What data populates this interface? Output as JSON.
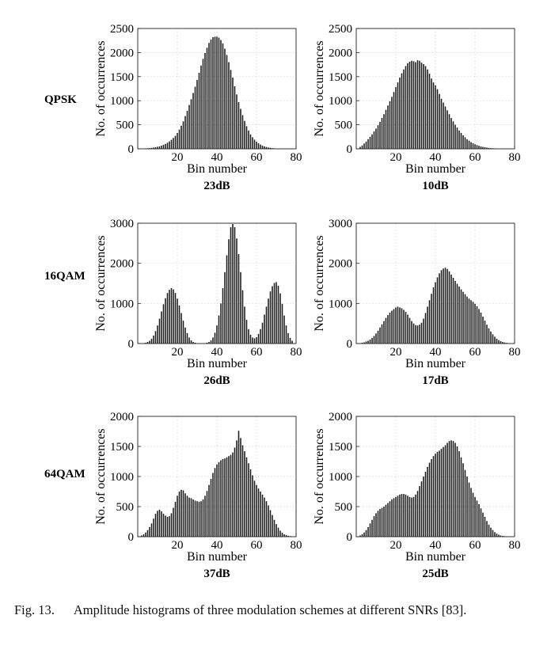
{
  "caption": {
    "label": "Fig. 13.",
    "text": "Amplitude histograms of three modulation schemes at different SNRs [83]."
  },
  "rows": [
    {
      "label": "QPSK"
    },
    {
      "label": "16QAM"
    },
    {
      "label": "64QAM"
    }
  ],
  "chart_data": [
    {
      "type": "bar",
      "modulation": "QPSK",
      "snr": "23dB",
      "xlabel": "Bin number",
      "ylabel": "No. of occurrences",
      "xlim": [
        0,
        80
      ],
      "ylim": [
        0,
        2500
      ],
      "xticks": [
        20,
        40,
        60,
        80
      ],
      "yticks": [
        0,
        500,
        1000,
        1500,
        2000,
        2500
      ],
      "grid": true,
      "bins": [
        2,
        3,
        4,
        5,
        6,
        7,
        8,
        9,
        10,
        11,
        12,
        13,
        14,
        15,
        16,
        17,
        18,
        19,
        20,
        21,
        22,
        23,
        24,
        25,
        26,
        27,
        28,
        29,
        30,
        31,
        32,
        33,
        34,
        35,
        36,
        37,
        38,
        39,
        40,
        41,
        42,
        43,
        44,
        45,
        46,
        47,
        48,
        49,
        50,
        51,
        52,
        53,
        54,
        55,
        56,
        57,
        58,
        59,
        60,
        61,
        62,
        63,
        64,
        65,
        66,
        67,
        68,
        69,
        70,
        71,
        72,
        73,
        74,
        75,
        76,
        77,
        78
      ],
      "values": [
        5,
        8,
        10,
        12,
        16,
        20,
        26,
        33,
        42,
        52,
        66,
        82,
        102,
        126,
        154,
        188,
        226,
        270,
        330,
        400,
        480,
        570,
        680,
        790,
        910,
        1030,
        1160,
        1290,
        1430,
        1580,
        1730,
        1870,
        1990,
        2100,
        2200,
        2270,
        2320,
        2330,
        2330,
        2310,
        2260,
        2190,
        2080,
        1950,
        1800,
        1640,
        1480,
        1300,
        1130,
        970,
        830,
        700,
        580,
        470,
        380,
        300,
        240,
        190,
        150,
        115,
        88,
        66,
        50,
        38,
        28,
        20,
        14,
        10,
        7,
        5,
        4,
        3,
        2,
        2,
        1,
        1,
        1
      ]
    },
    {
      "type": "bar",
      "modulation": "QPSK",
      "snr": "10dB",
      "xlabel": "Bin number",
      "ylabel": "No. of occurrences",
      "xlim": [
        0,
        80
      ],
      "ylim": [
        0,
        2500
      ],
      "xticks": [
        20,
        40,
        60,
        80
      ],
      "yticks": [
        0,
        500,
        1000,
        1500,
        2000,
        2500
      ],
      "grid": true,
      "bins": [
        2,
        3,
        4,
        5,
        6,
        7,
        8,
        9,
        10,
        11,
        12,
        13,
        14,
        15,
        16,
        17,
        18,
        19,
        20,
        21,
        22,
        23,
        24,
        25,
        26,
        27,
        28,
        29,
        30,
        31,
        32,
        33,
        34,
        35,
        36,
        37,
        38,
        39,
        40,
        41,
        42,
        43,
        44,
        45,
        46,
        47,
        48,
        49,
        50,
        51,
        52,
        53,
        54,
        55,
        56,
        57,
        58,
        59,
        60,
        61,
        62,
        63,
        64,
        65,
        66,
        67,
        68,
        69,
        70,
        71,
        72,
        73,
        74,
        75,
        76,
        77,
        78
      ],
      "values": [
        40,
        70,
        110,
        150,
        200,
        250,
        300,
        360,
        420,
        490,
        560,
        640,
        720,
        810,
        900,
        990,
        1080,
        1180,
        1280,
        1380,
        1480,
        1570,
        1650,
        1720,
        1780,
        1810,
        1830,
        1820,
        1800,
        1840,
        1830,
        1790,
        1760,
        1720,
        1650,
        1560,
        1460,
        1380,
        1320,
        1240,
        1140,
        1040,
        960,
        880,
        800,
        720,
        640,
        570,
        500,
        440,
        380,
        330,
        280,
        240,
        200,
        170,
        140,
        115,
        95,
        78,
        63,
        50,
        40,
        32,
        25,
        19,
        15,
        12,
        9,
        7,
        5,
        4,
        3,
        2,
        2,
        1,
        1
      ]
    },
    {
      "type": "bar",
      "modulation": "16QAM",
      "snr": "26dB",
      "xlabel": "Bin number",
      "ylabel": "No. of occurrences",
      "xlim": [
        0,
        80
      ],
      "ylim": [
        0,
        3000
      ],
      "xticks": [
        20,
        40,
        60,
        80
      ],
      "yticks": [
        0,
        1000,
        2000,
        3000
      ],
      "grid": true,
      "bins": [
        2,
        3,
        4,
        5,
        6,
        7,
        8,
        9,
        10,
        11,
        12,
        13,
        14,
        15,
        16,
        17,
        18,
        19,
        20,
        21,
        22,
        23,
        24,
        25,
        26,
        27,
        28,
        29,
        30,
        31,
        32,
        33,
        34,
        35,
        36,
        37,
        38,
        39,
        40,
        41,
        42,
        43,
        44,
        45,
        46,
        47,
        48,
        49,
        50,
        51,
        52,
        53,
        54,
        55,
        56,
        57,
        58,
        59,
        60,
        61,
        62,
        63,
        64,
        65,
        66,
        67,
        68,
        69,
        70,
        71,
        72,
        73,
        74,
        75,
        76,
        77,
        78
      ],
      "values": [
        5,
        10,
        20,
        40,
        70,
        120,
        200,
        310,
        450,
        620,
        800,
        980,
        1130,
        1260,
        1340,
        1380,
        1350,
        1260,
        1120,
        950,
        760,
        570,
        400,
        260,
        150,
        80,
        40,
        20,
        10,
        5,
        5,
        5,
        10,
        20,
        40,
        80,
        150,
        270,
        450,
        700,
        1000,
        1380,
        1780,
        2200,
        2600,
        2900,
        2980,
        2900,
        2620,
        2230,
        1780,
        1330,
        920,
        590,
        360,
        220,
        150,
        130,
        160,
        240,
        360,
        520,
        720,
        920,
        1120,
        1300,
        1430,
        1510,
        1530,
        1440,
        1250,
        990,
        700,
        450,
        260,
        140,
        70
      ]
    },
    {
      "type": "bar",
      "modulation": "16QAM",
      "snr": "17dB",
      "xlabel": "Bin number",
      "ylabel": "No. of occurrences",
      "xlim": [
        0,
        80
      ],
      "ylim": [
        0,
        3000
      ],
      "xticks": [
        20,
        40,
        60,
        80
      ],
      "yticks": [
        0,
        1000,
        2000,
        3000
      ],
      "grid": true,
      "bins": [
        2,
        3,
        4,
        5,
        6,
        7,
        8,
        9,
        10,
        11,
        12,
        13,
        14,
        15,
        16,
        17,
        18,
        19,
        20,
        21,
        22,
        23,
        24,
        25,
        26,
        27,
        28,
        29,
        30,
        31,
        32,
        33,
        34,
        35,
        36,
        37,
        38,
        39,
        40,
        41,
        42,
        43,
        44,
        45,
        46,
        47,
        48,
        49,
        50,
        51,
        52,
        53,
        54,
        55,
        56,
        57,
        58,
        59,
        60,
        61,
        62,
        63,
        64,
        65,
        66,
        67,
        68,
        69,
        70,
        71,
        72,
        73,
        74,
        75,
        76,
        77,
        78
      ],
      "values": [
        10,
        20,
        30,
        50,
        70,
        100,
        140,
        190,
        250,
        320,
        400,
        480,
        560,
        640,
        710,
        770,
        820,
        860,
        900,
        920,
        900,
        880,
        840,
        790,
        720,
        640,
        560,
        500,
        460,
        450,
        470,
        520,
        620,
        760,
        920,
        1080,
        1240,
        1400,
        1530,
        1650,
        1750,
        1830,
        1870,
        1890,
        1860,
        1800,
        1720,
        1640,
        1560,
        1490,
        1420,
        1350,
        1290,
        1230,
        1170,
        1120,
        1080,
        1040,
        990,
        930,
        860,
        770,
        670,
        570,
        470,
        380,
        300,
        230,
        170,
        120,
        85,
        60,
        40,
        26,
        17,
        10,
        6
      ]
    },
    {
      "type": "bar",
      "modulation": "64QAM",
      "snr": "37dB",
      "xlabel": "Bin number",
      "ylabel": "No. of occurrences",
      "xlim": [
        0,
        80
      ],
      "ylim": [
        0,
        2000
      ],
      "xticks": [
        20,
        40,
        60,
        80
      ],
      "yticks": [
        0,
        500,
        1000,
        1500,
        2000
      ],
      "grid": true,
      "bins": [
        2,
        3,
        4,
        5,
        6,
        7,
        8,
        9,
        10,
        11,
        12,
        13,
        14,
        15,
        16,
        17,
        18,
        19,
        20,
        21,
        22,
        23,
        24,
        25,
        26,
        27,
        28,
        29,
        30,
        31,
        32,
        33,
        34,
        35,
        36,
        37,
        38,
        39,
        40,
        41,
        42,
        43,
        44,
        45,
        46,
        47,
        48,
        49,
        50,
        51,
        52,
        53,
        54,
        55,
        56,
        57,
        58,
        59,
        60,
        61,
        62,
        63,
        64,
        65,
        66,
        67,
        68,
        69,
        70,
        71,
        72,
        73,
        74,
        75,
        76,
        77,
        78
      ],
      "values": [
        20,
        40,
        70,
        110,
        160,
        220,
        300,
        380,
        430,
        450,
        420,
        380,
        350,
        330,
        340,
        390,
        480,
        580,
        680,
        750,
        780,
        770,
        720,
        680,
        650,
        640,
        620,
        600,
        590,
        580,
        590,
        620,
        680,
        760,
        860,
        960,
        1060,
        1140,
        1200,
        1240,
        1270,
        1290,
        1300,
        1320,
        1340,
        1360,
        1400,
        1480,
        1600,
        1760,
        1640,
        1520,
        1420,
        1320,
        1220,
        1120,
        1020,
        930,
        860,
        800,
        750,
        700,
        650,
        590,
        520,
        440,
        360,
        280,
        210,
        150,
        100,
        65,
        40,
        25,
        15,
        10,
        6
      ]
    },
    {
      "type": "bar",
      "modulation": "64QAM",
      "snr": "25dB",
      "xlabel": "Bin number",
      "ylabel": "No. of occurrences",
      "xlim": [
        0,
        80
      ],
      "ylim": [
        0,
        2000
      ],
      "xticks": [
        20,
        40,
        60,
        80
      ],
      "yticks": [
        0,
        500,
        1000,
        1500,
        2000
      ],
      "grid": true,
      "bins": [
        2,
        3,
        4,
        5,
        6,
        7,
        8,
        9,
        10,
        11,
        12,
        13,
        14,
        15,
        16,
        17,
        18,
        19,
        20,
        21,
        22,
        23,
        24,
        25,
        26,
        27,
        28,
        29,
        30,
        31,
        32,
        33,
        34,
        35,
        36,
        37,
        38,
        39,
        40,
        41,
        42,
        43,
        44,
        45,
        46,
        47,
        48,
        49,
        50,
        51,
        52,
        53,
        54,
        55,
        56,
        57,
        58,
        59,
        60,
        61,
        62,
        63,
        64,
        65,
        66,
        67,
        68,
        69,
        70,
        71,
        72,
        73,
        74,
        75,
        76,
        77,
        78
      ],
      "values": [
        20,
        40,
        70,
        110,
        160,
        220,
        280,
        340,
        390,
        430,
        460,
        480,
        500,
        530,
        560,
        590,
        620,
        640,
        660,
        680,
        700,
        710,
        710,
        700,
        680,
        660,
        650,
        660,
        700,
        760,
        840,
        920,
        1000,
        1080,
        1160,
        1230,
        1290,
        1340,
        1380,
        1410,
        1430,
        1460,
        1490,
        1520,
        1560,
        1590,
        1600,
        1590,
        1560,
        1500,
        1420,
        1320,
        1220,
        1110,
        1000,
        900,
        810,
        730,
        660,
        600,
        540,
        470,
        400,
        330,
        260,
        200,
        150,
        110,
        75,
        50,
        32,
        20,
        12,
        8,
        5,
        3,
        2
      ]
    }
  ]
}
